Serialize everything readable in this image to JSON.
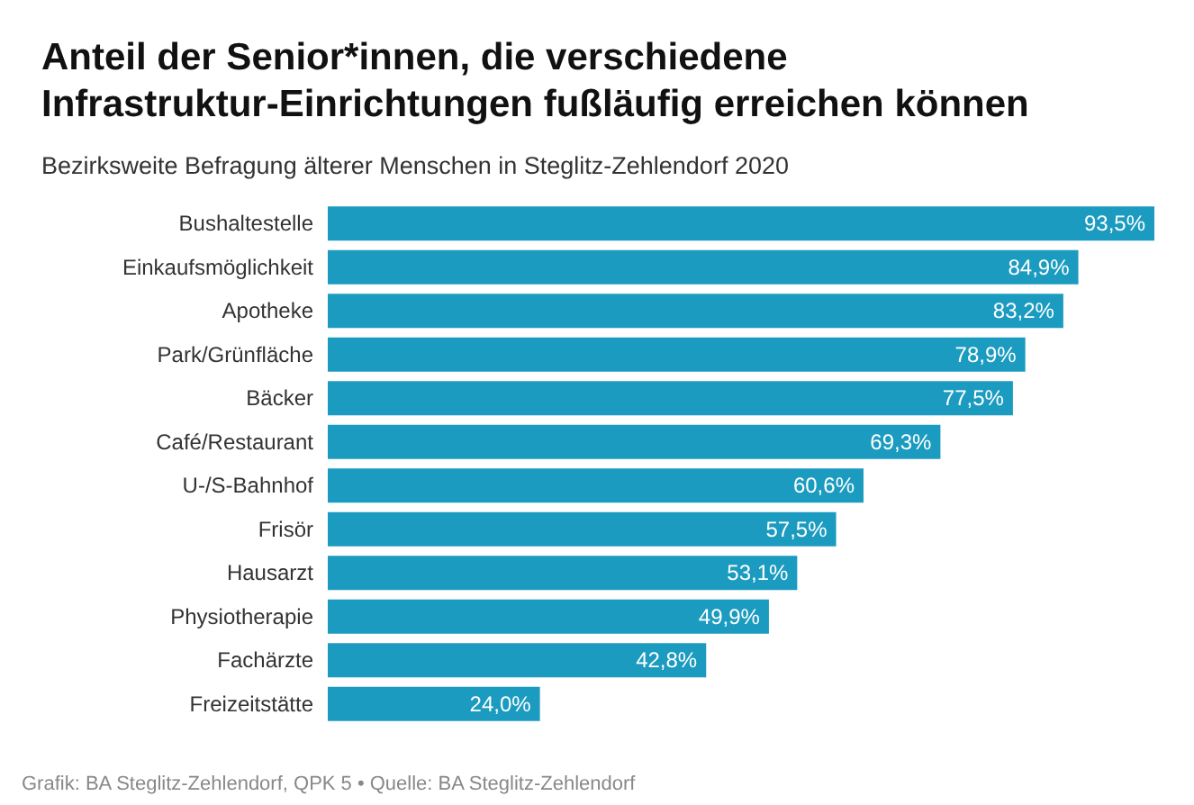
{
  "chart_data": {
    "type": "bar",
    "orientation": "horizontal",
    "title": "Anteil der Senior*innen, die verschiedene Infrastruktur-Einrichtungen fußläufig erreichen können",
    "subtitle": "Bezirksweite Befragung älterer Menschen in Steglitz-Zehlendorf 2020",
    "categories": [
      "Bushaltestelle",
      "Einkaufsmöglichkeit",
      "Apotheke",
      "Park/Grünfläche",
      "Bäcker",
      "Café/Restaurant",
      "U-/S-Bahnhof",
      "Frisör",
      "Hausarzt",
      "Physiotherapie",
      "Fachärzte",
      "Freizeitstätte"
    ],
    "values": [
      93.5,
      84.9,
      83.2,
      78.9,
      77.5,
      69.3,
      60.6,
      57.5,
      53.1,
      49.9,
      42.8,
      24.0
    ],
    "value_labels": [
      "93,5%",
      "84,9%",
      "83,2%",
      "78,9%",
      "77,5%",
      "69,3%",
      "60,6%",
      "57,5%",
      "53,1%",
      "49,9%",
      "42,8%",
      "24,0%"
    ],
    "color": "#1b9bbf",
    "annotations": [
      "Grafik: BA Steglitz-Zehlendorf, QPK 5 • Quelle: BA Steglitz-Zehlendorf"
    ]
  }
}
